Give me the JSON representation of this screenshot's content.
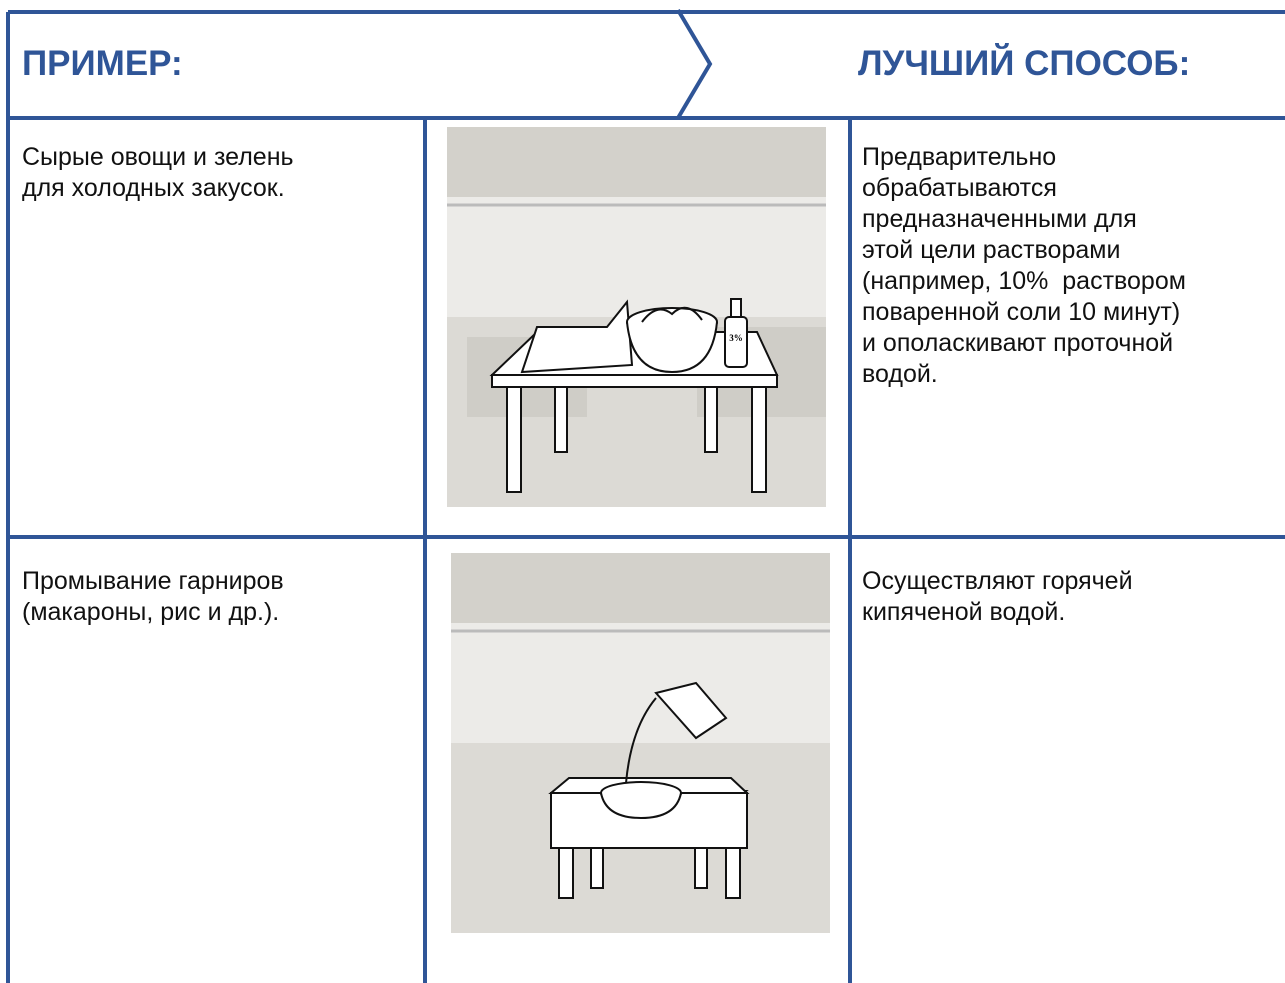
{
  "header": {
    "left": "ПРИМЕР:",
    "right": "ЛУЧШИЙ СПОСОБ:"
  },
  "rows": [
    {
      "example": [
        "Сырые овощи и зелень",
        "для холодных закусок."
      ],
      "image_label": "3%",
      "method": [
        "Предварительно",
        "обрабатываются",
        "предназначенными для",
        "этой цели растворами",
        "(например, 10%  раствором",
        "поваренной соли 10 минут)",
        "и ополаскивают проточной",
        "водой."
      ]
    },
    {
      "example": [
        "Промывание гарниров",
        "(макароны, рис и др.)."
      ],
      "method": [
        "Осуществляют горячей",
        "кипяченой водой."
      ]
    }
  ]
}
